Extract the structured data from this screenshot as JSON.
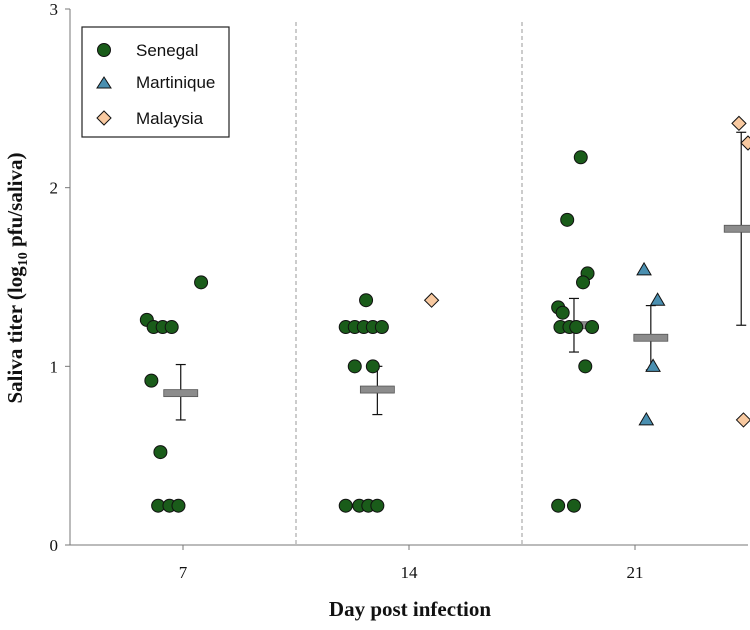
{
  "chart_data": {
    "type": "scatter",
    "xlabel": "Day post infection",
    "ylabel": {
      "prefix": "Saliva titer (log",
      "sub": "10",
      "suffix": " pfu/saliva)"
    },
    "ylim": [
      0,
      3
    ],
    "yticks": [
      0,
      1,
      2,
      3
    ],
    "ytick_labels": [
      "0",
      "1",
      "2",
      "3"
    ],
    "xticks": [
      {
        "x": 1,
        "label": "7"
      },
      {
        "x": 2,
        "label": "14"
      },
      {
        "x": 3,
        "label": "21"
      }
    ],
    "xlim": [
      0.5,
      3.5
    ],
    "separators": [
      1.5,
      2.5
    ],
    "legend": {
      "position": "top-left"
    },
    "series": [
      {
        "name": "Senegal",
        "marker": "circle",
        "color": "#1a5c1a",
        "points": [
          {
            "x": 0.84,
            "y": 1.26
          },
          {
            "x": 0.87,
            "y": 1.22
          },
          {
            "x": 0.91,
            "y": 1.22
          },
          {
            "x": 0.95,
            "y": 1.22
          },
          {
            "x": 1.08,
            "y": 1.47
          },
          {
            "x": 0.86,
            "y": 0.92
          },
          {
            "x": 0.9,
            "y": 0.52
          },
          {
            "x": 0.89,
            "y": 0.22
          },
          {
            "x": 0.94,
            "y": 0.22
          },
          {
            "x": 0.98,
            "y": 0.22
          },
          {
            "x": 1.81,
            "y": 1.37
          },
          {
            "x": 1.72,
            "y": 1.22
          },
          {
            "x": 1.76,
            "y": 1.22
          },
          {
            "x": 1.8,
            "y": 1.22
          },
          {
            "x": 1.84,
            "y": 1.22
          },
          {
            "x": 1.88,
            "y": 1.22
          },
          {
            "x": 1.76,
            "y": 1.0
          },
          {
            "x": 1.84,
            "y": 1.0
          },
          {
            "x": 1.72,
            "y": 0.22
          },
          {
            "x": 1.78,
            "y": 0.22
          },
          {
            "x": 1.82,
            "y": 0.22
          },
          {
            "x": 1.86,
            "y": 0.22
          },
          {
            "x": 2.76,
            "y": 2.17
          },
          {
            "x": 2.7,
            "y": 1.82
          },
          {
            "x": 2.79,
            "y": 1.52
          },
          {
            "x": 2.77,
            "y": 1.47
          },
          {
            "x": 2.66,
            "y": 1.33
          },
          {
            "x": 2.68,
            "y": 1.3
          },
          {
            "x": 2.67,
            "y": 1.22
          },
          {
            "x": 2.71,
            "y": 1.22
          },
          {
            "x": 2.74,
            "y": 1.22
          },
          {
            "x": 2.81,
            "y": 1.22
          },
          {
            "x": 2.78,
            "y": 1.0
          },
          {
            "x": 2.66,
            "y": 0.22
          },
          {
            "x": 2.73,
            "y": 0.22
          }
        ]
      },
      {
        "name": "Martinique",
        "marker": "triangle",
        "color": "#4a8fb0",
        "points": [
          {
            "x": 3.04,
            "y": 1.54
          },
          {
            "x": 3.1,
            "y": 1.37
          },
          {
            "x": 3.08,
            "y": 1.0
          },
          {
            "x": 3.05,
            "y": 0.7
          }
        ]
      },
      {
        "name": "Malaysia",
        "marker": "diamond",
        "color": "#f8c9a0",
        "points": [
          {
            "x": 2.1,
            "y": 1.37
          },
          {
            "x": 3.46,
            "y": 2.36
          },
          {
            "x": 3.5,
            "y": 2.25
          },
          {
            "x": 3.48,
            "y": 0.7
          }
        ]
      }
    ],
    "summary_stats": [
      {
        "group": "Senegal day 7",
        "x": 0.99,
        "mean": 0.85,
        "lower": 0.7,
        "upper": 1.01
      },
      {
        "group": "Senegal day 14",
        "x": 1.86,
        "mean": 0.87,
        "lower": 0.73,
        "upper": 1.0
      },
      {
        "group": "Senegal day 21",
        "x": 2.73,
        "mean": 1.23,
        "lower": 1.08,
        "upper": 1.38
      },
      {
        "group": "Martinique day 21",
        "x": 3.07,
        "mean": 1.16,
        "lower": 0.98,
        "upper": 1.34
      },
      {
        "group": "Malaysia day 21",
        "x": 3.47,
        "mean": 1.77,
        "lower": 1.23,
        "upper": 2.31
      }
    ]
  }
}
